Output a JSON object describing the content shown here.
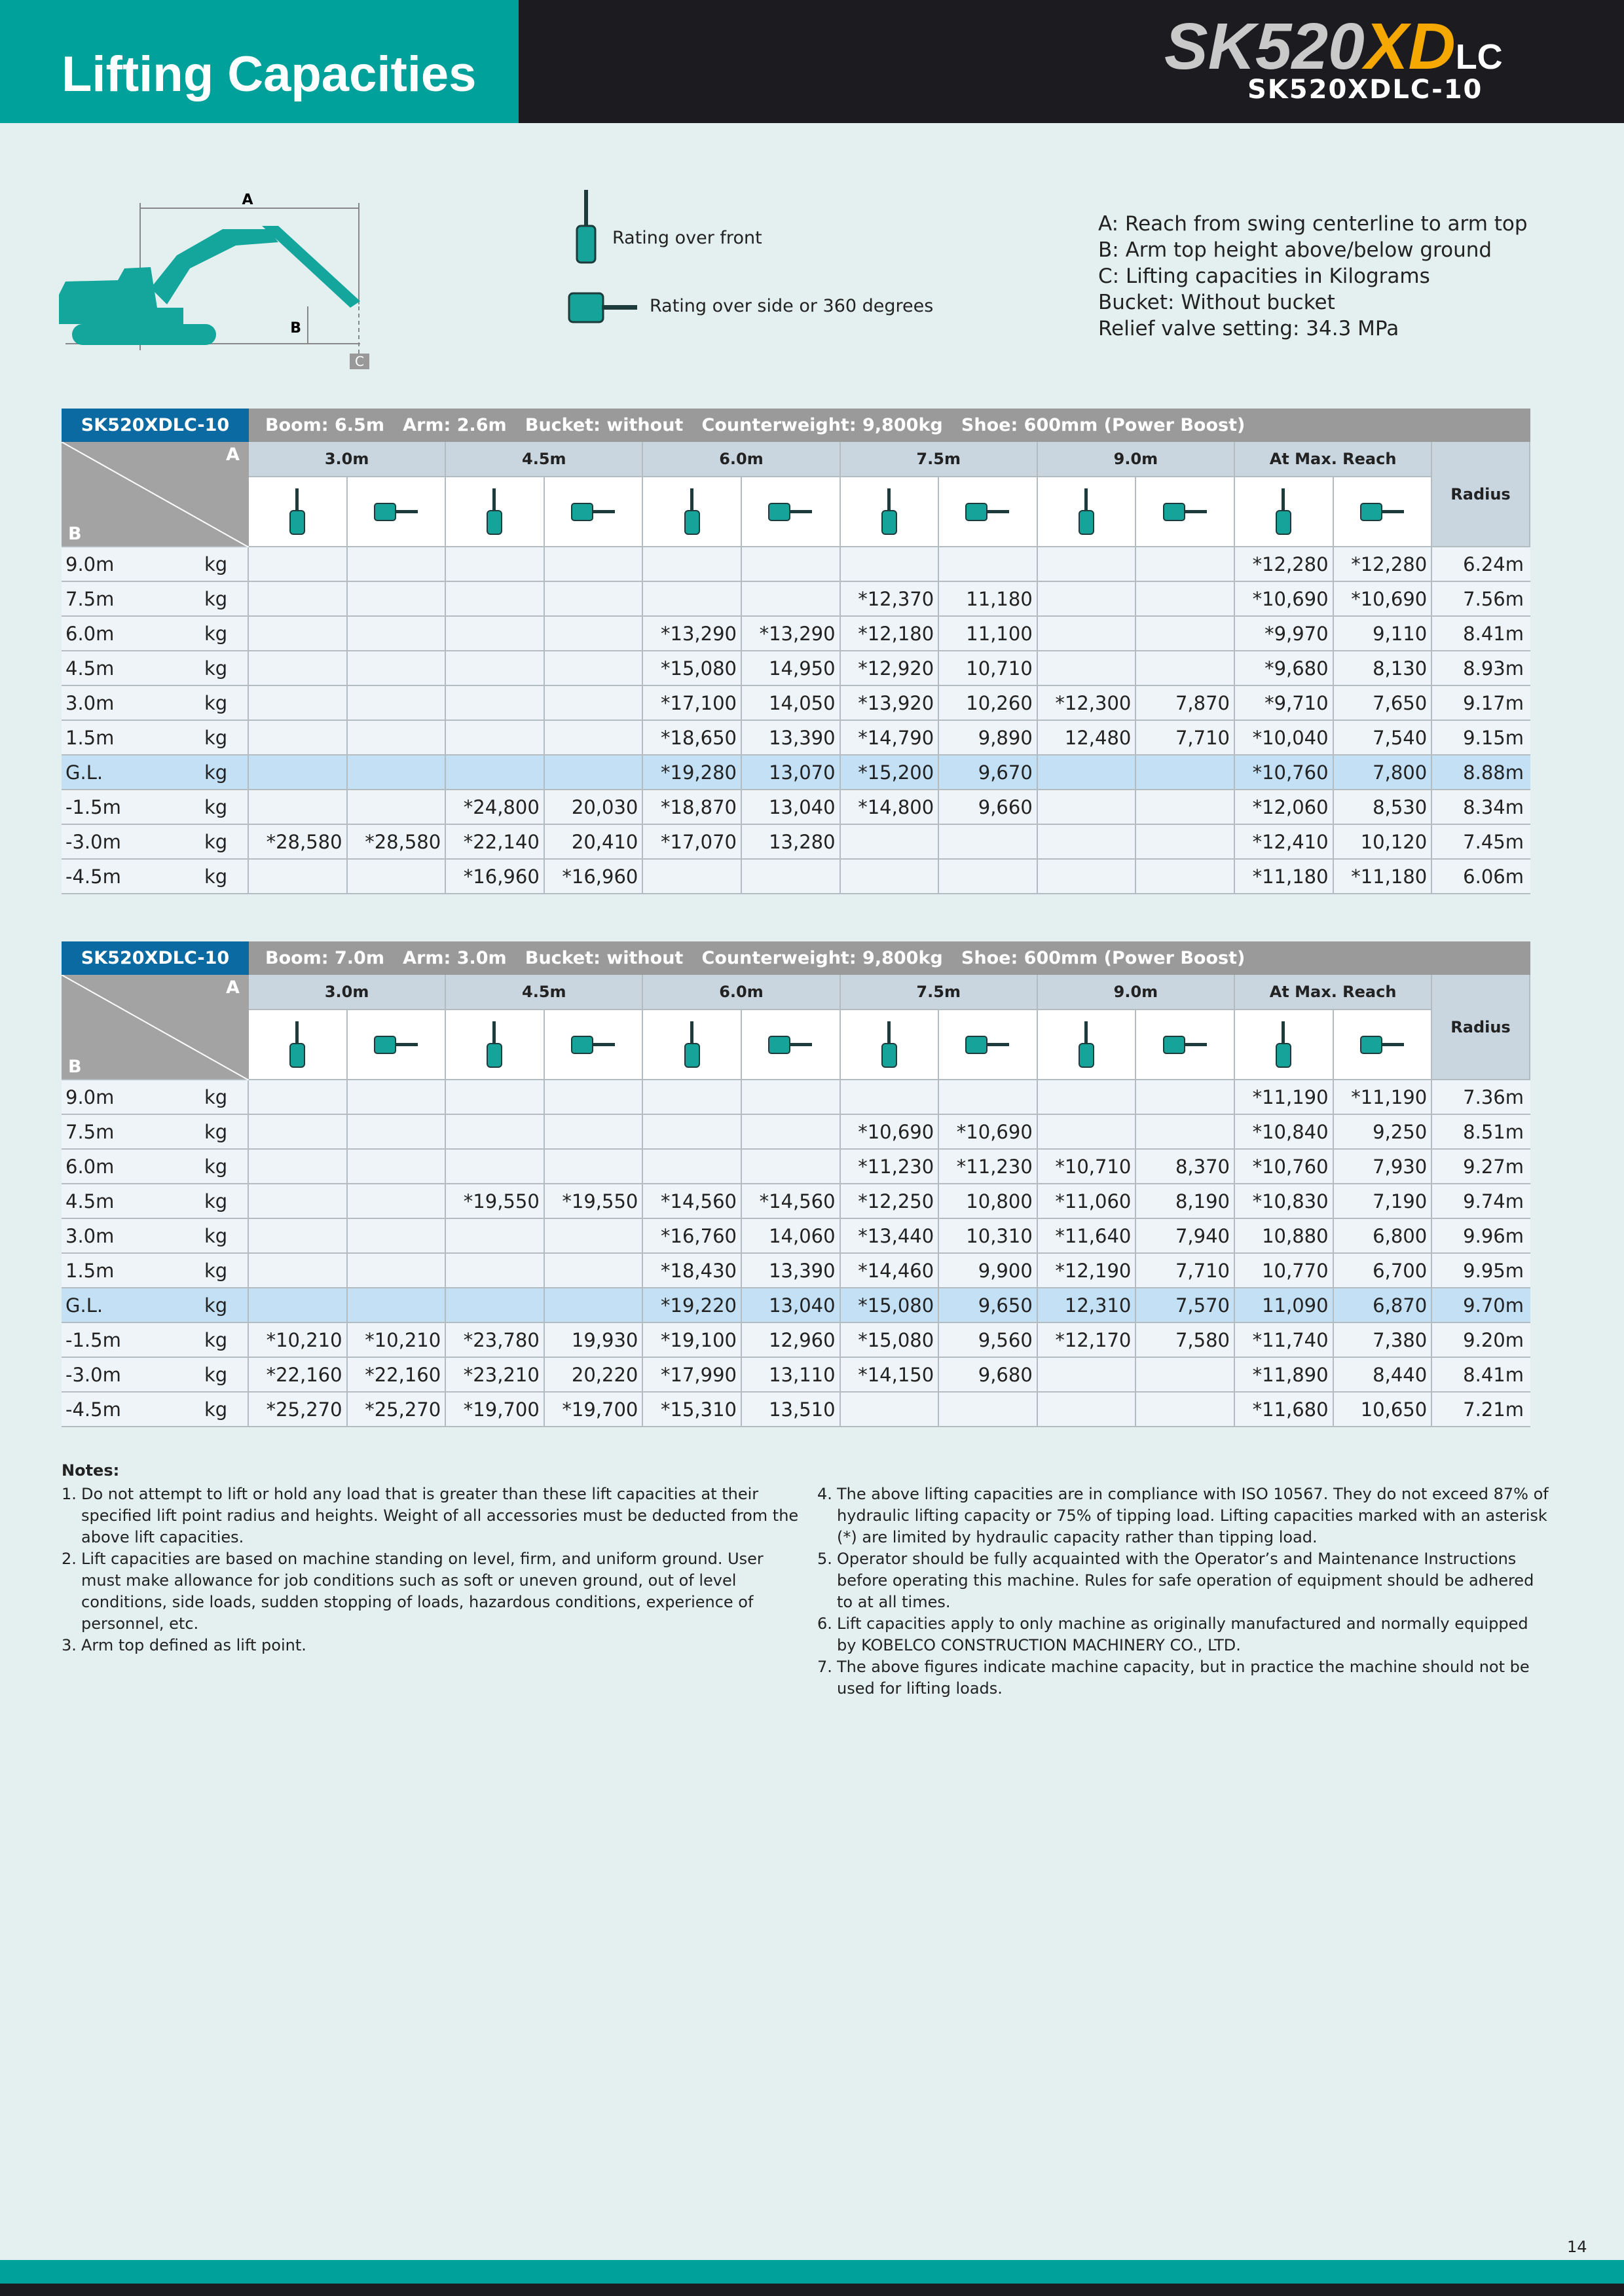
{
  "header": {
    "title": "Lifting Capacities",
    "logo_model": "SK520",
    "logo_xd": "XD",
    "logo_lc": "LC",
    "model": "SK520XDLC-10"
  },
  "diagram": {
    "label_a": "A",
    "label_b": "B",
    "label_c": "C",
    "rating_front": "Rating over front",
    "rating_side": "Rating over side or 360 degrees",
    "definitions": [
      "A: Reach from swing centerline to arm top",
      "B: Arm top height above/below ground",
      "C: Lifting capacities in Kilograms",
      "Bucket: Without bucket",
      "Relief valve setting: 34.3 MPa"
    ]
  },
  "tables": [
    {
      "model": "SK520XDLC-10",
      "spec": "Boom: 6.5m   Arm: 2.6m   Bucket: without   Counterweight: 9,800kg   Shoe: 600mm (Power Boost)",
      "corner_a": "A",
      "corner_b": "B",
      "radius_label": "Radius",
      "columns": [
        "3.0m",
        "4.5m",
        "6.0m",
        "7.5m",
        "9.0m",
        "At Max. Reach"
      ],
      "rows": [
        {
          "height": "9.0m",
          "unit": "kg",
          "cells": [
            null,
            null,
            null,
            null,
            null,
            null,
            null,
            null,
            null,
            null,
            "*12,280",
            "*12,280"
          ],
          "radius": "6.24m"
        },
        {
          "height": "7.5m",
          "unit": "kg",
          "cells": [
            null,
            null,
            null,
            null,
            null,
            null,
            "*12,370",
            "11,180",
            null,
            null,
            "*10,690",
            "*10,690"
          ],
          "radius": "7.56m"
        },
        {
          "height": "6.0m",
          "unit": "kg",
          "cells": [
            null,
            null,
            null,
            null,
            "*13,290",
            "*13,290",
            "*12,180",
            "11,100",
            null,
            null,
            "*9,970",
            "9,110"
          ],
          "radius": "8.41m"
        },
        {
          "height": "4.5m",
          "unit": "kg",
          "cells": [
            null,
            null,
            null,
            null,
            "*15,080",
            "14,950",
            "*12,920",
            "10,710",
            null,
            null,
            "*9,680",
            "8,130"
          ],
          "radius": "8.93m"
        },
        {
          "height": "3.0m",
          "unit": "kg",
          "cells": [
            null,
            null,
            null,
            null,
            "*17,100",
            "14,050",
            "*13,920",
            "10,260",
            "*12,300",
            "7,870",
            "*9,710",
            "7,650"
          ],
          "radius": "9.17m"
        },
        {
          "height": "1.5m",
          "unit": "kg",
          "cells": [
            null,
            null,
            null,
            null,
            "*18,650",
            "13,390",
            "*14,790",
            "9,890",
            "12,480",
            "7,710",
            "*10,040",
            "7,540"
          ],
          "radius": "9.15m"
        },
        {
          "height": "G.L.",
          "unit": "kg",
          "cells": [
            null,
            null,
            null,
            null,
            "*19,280",
            "13,070",
            "*15,200",
            "9,670",
            null,
            null,
            "*10,760",
            "7,800"
          ],
          "radius": "8.88m"
        },
        {
          "height": "-1.5m",
          "unit": "kg",
          "cells": [
            null,
            null,
            "*24,800",
            "20,030",
            "*18,870",
            "13,040",
            "*14,800",
            "9,660",
            null,
            null,
            "*12,060",
            "8,530"
          ],
          "radius": "8.34m"
        },
        {
          "height": "-3.0m",
          "unit": "kg",
          "cells": [
            "*28,580",
            "*28,580",
            "*22,140",
            "20,410",
            "*17,070",
            "13,280",
            null,
            null,
            null,
            null,
            "*12,410",
            "10,120"
          ],
          "radius": "7.45m"
        },
        {
          "height": "-4.5m",
          "unit": "kg",
          "cells": [
            null,
            null,
            "*16,960",
            "*16,960",
            null,
            null,
            null,
            null,
            null,
            null,
            "*11,180",
            "*11,180"
          ],
          "radius": "6.06m"
        }
      ]
    },
    {
      "model": "SK520XDLC-10",
      "spec": "Boom: 7.0m   Arm: 3.0m   Bucket: without   Counterweight: 9,800kg   Shoe: 600mm (Power Boost)",
      "corner_a": "A",
      "corner_b": "B",
      "radius_label": "Radius",
      "columns": [
        "3.0m",
        "4.5m",
        "6.0m",
        "7.5m",
        "9.0m",
        "At Max. Reach"
      ],
      "rows": [
        {
          "height": "9.0m",
          "unit": "kg",
          "cells": [
            null,
            null,
            null,
            null,
            null,
            null,
            null,
            null,
            null,
            null,
            "*11,190",
            "*11,190"
          ],
          "radius": "7.36m"
        },
        {
          "height": "7.5m",
          "unit": "kg",
          "cells": [
            null,
            null,
            null,
            null,
            null,
            null,
            "*10,690",
            "*10,690",
            null,
            null,
            "*10,840",
            "9,250"
          ],
          "radius": "8.51m"
        },
        {
          "height": "6.0m",
          "unit": "kg",
          "cells": [
            null,
            null,
            null,
            null,
            null,
            null,
            "*11,230",
            "*11,230",
            "*10,710",
            "8,370",
            "*10,760",
            "7,930"
          ],
          "radius": "9.27m"
        },
        {
          "height": "4.5m",
          "unit": "kg",
          "cells": [
            null,
            null,
            "*19,550",
            "*19,550",
            "*14,560",
            "*14,560",
            "*12,250",
            "10,800",
            "*11,060",
            "8,190",
            "*10,830",
            "7,190"
          ],
          "radius": "9.74m"
        },
        {
          "height": "3.0m",
          "unit": "kg",
          "cells": [
            null,
            null,
            null,
            null,
            "*16,760",
            "14,060",
            "*13,440",
            "10,310",
            "*11,640",
            "7,940",
            "10,880",
            "6,800"
          ],
          "radius": "9.96m"
        },
        {
          "height": "1.5m",
          "unit": "kg",
          "cells": [
            null,
            null,
            null,
            null,
            "*18,430",
            "13,390",
            "*14,460",
            "9,900",
            "*12,190",
            "7,710",
            "10,770",
            "6,700"
          ],
          "radius": "9.95m"
        },
        {
          "height": "G.L.",
          "unit": "kg",
          "cells": [
            null,
            null,
            null,
            null,
            "*19,220",
            "13,040",
            "*15,080",
            "9,650",
            "12,310",
            "7,570",
            "11,090",
            "6,870"
          ],
          "radius": "9.70m"
        },
        {
          "height": "-1.5m",
          "unit": "kg",
          "cells": [
            "*10,210",
            "*10,210",
            "*23,780",
            "19,930",
            "*19,100",
            "12,960",
            "*15,080",
            "9,560",
            "*12,170",
            "7,580",
            "*11,740",
            "7,380"
          ],
          "radius": "9.20m"
        },
        {
          "height": "-3.0m",
          "unit": "kg",
          "cells": [
            "*22,160",
            "*22,160",
            "*23,210",
            "20,220",
            "*17,990",
            "13,110",
            "*14,150",
            "9,680",
            null,
            null,
            "*11,890",
            "8,440"
          ],
          "radius": "8.41m"
        },
        {
          "height": "-4.5m",
          "unit": "kg",
          "cells": [
            "*25,270",
            "*25,270",
            "*19,700",
            "*19,700",
            "*15,310",
            "13,510",
            null,
            null,
            null,
            null,
            "*11,680",
            "10,650"
          ],
          "radius": "7.21m"
        }
      ]
    }
  ],
  "notes": {
    "title": "Notes:",
    "items": [
      {
        "num": "1.",
        "text": "Do not attempt to lift or hold any load that is greater than these lift capacities at their specified lift point radius and heights. Weight of all accessories must be deducted from the above lift capacities."
      },
      {
        "num": "2.",
        "text": "Lift capacities are based on machine standing on level, firm, and uniform ground. User must make allowance for job conditions such as soft or uneven ground, out of level conditions, side loads, sudden stopping of loads, hazardous conditions, experience of personnel, etc."
      },
      {
        "num": "3.",
        "text": "Arm top defined as lift point."
      },
      {
        "num": "4.",
        "text": "The above lifting capacities are in compliance with ISO 10567. They do not exceed 87% of hydraulic lifting capacity or 75% of tipping load. Lifting capacities marked with an asterisk (*) are limited by hydraulic capacity rather than tipping load."
      },
      {
        "num": "5.",
        "text": "Operator should be fully acquainted with the Operator’s and Maintenance Instructions before operating this machine. Rules for safe operation of equipment should be adhered to at all times."
      },
      {
        "num": "6.",
        "text": "Lift capacities apply to only machine as originally manufactured and normally equipped by KOBELCO CONSTRUCTION MACHINERY CO., LTD."
      },
      {
        "num": "7.",
        "text": "The above figures indicate machine capacity, but in practice the machine should not be used for lifting loads."
      }
    ]
  },
  "page_number": "14"
}
